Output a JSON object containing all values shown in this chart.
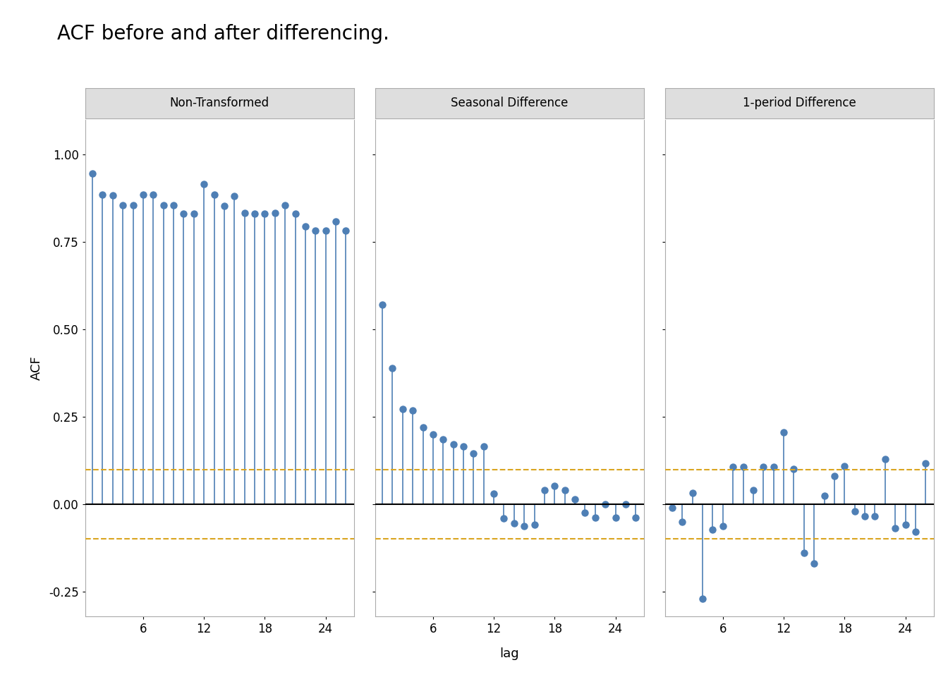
{
  "title": "ACF before and after differencing.",
  "panel_titles": [
    "Non-Transformed",
    "Seasonal Difference",
    "1-period Difference"
  ],
  "xlabel": "lag",
  "ylabel": "ACF",
  "ylim": [
    -0.32,
    1.1
  ],
  "yticks": [
    -0.25,
    0.0,
    0.25,
    0.5,
    0.75,
    1.0
  ],
  "ytick_labels": [
    "-0.25",
    "0.00",
    "0.25",
    "0.50",
    "0.75",
    "1.00"
  ],
  "xticks": [
    6,
    12,
    18,
    24
  ],
  "xlim": [
    0.3,
    26.8
  ],
  "conf_int": 0.098,
  "stem_color": "#4e7fb5",
  "marker_color": "#4e7fb5",
  "conf_color": "#DAA520",
  "background_color": "#ffffff",
  "panel_header_color": "#dedede",
  "panel_border_color": "#aaaaaa",
  "zero_line_color": "#000000",
  "title_fontsize": 20,
  "label_fontsize": 13,
  "tick_fontsize": 12,
  "panel_title_fontsize": 12,
  "panel1_lags": [
    1,
    2,
    3,
    4,
    5,
    6,
    7,
    8,
    9,
    10,
    11,
    12,
    13,
    14,
    15,
    16,
    17,
    18,
    19,
    20,
    21,
    22,
    23,
    24,
    25,
    26
  ],
  "panel1_acf": [
    0.946,
    0.886,
    0.884,
    0.855,
    0.856,
    0.885,
    0.885,
    0.856,
    0.855,
    0.832,
    0.832,
    0.916,
    0.885,
    0.854,
    0.882,
    0.834,
    0.832,
    0.832,
    0.833,
    0.856,
    0.832,
    0.795,
    0.783,
    0.784,
    0.81,
    0.784
  ],
  "panel2_lags": [
    1,
    2,
    3,
    4,
    5,
    6,
    7,
    8,
    9,
    10,
    11,
    12,
    13,
    14,
    15,
    16,
    17,
    18,
    19,
    20,
    21,
    22,
    23,
    24,
    25,
    26
  ],
  "panel2_acf": [
    0.571,
    0.39,
    0.272,
    0.268,
    0.219,
    0.2,
    0.185,
    0.172,
    0.165,
    0.145,
    0.165,
    0.031,
    -0.04,
    -0.055,
    -0.063,
    -0.058,
    0.04,
    0.052,
    0.04,
    0.015,
    -0.024,
    -0.038,
    0.0,
    -0.038,
    0.0,
    -0.038
  ],
  "panel3_lags": [
    1,
    2,
    3,
    4,
    5,
    6,
    7,
    8,
    9,
    10,
    11,
    12,
    13,
    14,
    15,
    16,
    17,
    18,
    19,
    20,
    21,
    22,
    23,
    24,
    25,
    26
  ],
  "panel3_acf": [
    -0.01,
    -0.05,
    0.033,
    -0.27,
    -0.073,
    -0.063,
    0.107,
    0.107,
    0.04,
    0.107,
    0.107,
    0.205,
    0.1,
    -0.14,
    -0.17,
    0.025,
    0.08,
    0.11,
    -0.02,
    -0.035,
    -0.035,
    0.13,
    -0.068,
    -0.058,
    -0.078,
    0.118
  ]
}
